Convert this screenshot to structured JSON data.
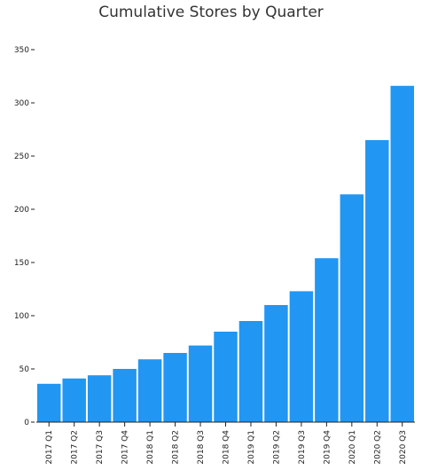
{
  "chart_data": {
    "type": "bar",
    "title": "Cumulative Stores by Quarter",
    "xlabel": "",
    "ylabel": "",
    "categories": [
      "2017 Q1",
      "2017 Q2",
      "2017 Q3",
      "2017 Q4",
      "2018 Q1",
      "2018 Q2",
      "2018 Q3",
      "2018 Q4",
      "2019 Q1",
      "2019 Q2",
      "2019 Q3",
      "2019 Q4",
      "2020 Q1",
      "2020 Q2",
      "2020 Q3"
    ],
    "values": [
      36,
      41,
      44,
      50,
      59,
      65,
      72,
      85,
      95,
      110,
      123,
      154,
      214,
      265,
      316
    ],
    "ylim": [
      0,
      350
    ],
    "yticks": [
      0,
      50,
      100,
      150,
      200,
      250,
      300,
      350
    ],
    "grid": false,
    "legend": "none",
    "bar_color": "#2196f3"
  }
}
